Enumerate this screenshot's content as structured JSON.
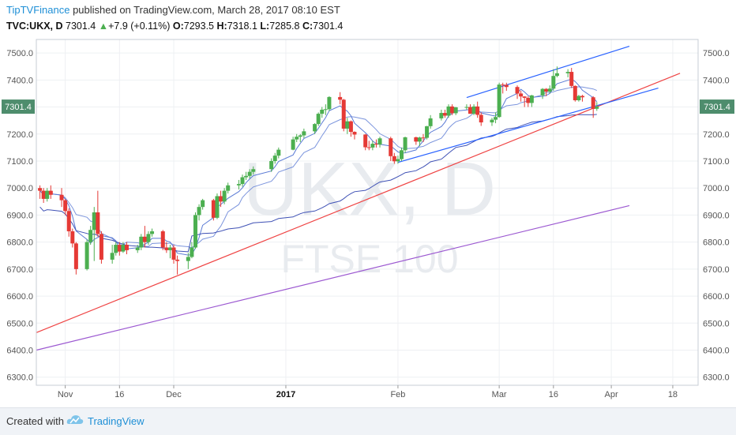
{
  "header": {
    "publisher": "TipTVFinance",
    "published_text": "published on TradingView.com, March 28, 2017 08:10 EST"
  },
  "symbol_line": {
    "symbol": "TVC:UKX, D",
    "last": "7301.4",
    "change": "+7.9 (+0.11%)",
    "open_label": "O:",
    "open": "7293.5",
    "high_label": "H:",
    "high": "7318.1",
    "low_label": "L:",
    "low": "7285.8",
    "close_label": "C:",
    "close": "7301.4"
  },
  "footer": {
    "created_with": "Created with",
    "brand": "TradingView"
  },
  "colors": {
    "up": "#4caf50",
    "down": "#e53935",
    "ma_fast": "#5b7bd5",
    "ma_slow": "#3f51b5",
    "ma_200": "#9c59d1",
    "trend_red": "#ef4444",
    "channel": "#2962ff",
    "tag": "#4e8d6d"
  },
  "chart_data": {
    "type": "candlestick",
    "watermark": {
      "symbol": "UKX, D",
      "name": "FTSE 100"
    },
    "y_ticks": [
      "7500.0",
      "7400.0",
      "7300.0",
      "7200.0",
      "7100.0",
      "7000.0",
      "6900.0",
      "6800.0",
      "6700.0",
      "6600.0",
      "6500.0",
      "6400.0",
      "6300.0"
    ],
    "ylim": [
      6270,
      7550
    ],
    "x_ticks": [
      {
        "label": "Nov",
        "bold": false
      },
      {
        "label": "16",
        "bold": false
      },
      {
        "label": "Dec",
        "bold": false
      },
      {
        "label": "2017",
        "bold": true
      },
      {
        "label": "Feb",
        "bold": false
      },
      {
        "label": "Mar",
        "bold": false
      },
      {
        "label": "16",
        "bold": false
      },
      {
        "label": "Apr",
        "bold": false
      },
      {
        "label": "18",
        "bold": false
      }
    ],
    "last_price_label": "7301.4",
    "last_price": 7301.4,
    "candles": [
      {
        "date": "2016-10-25",
        "o": 7000,
        "h": 7010,
        "l": 6960,
        "c": 6990
      },
      {
        "date": "2016-10-26",
        "o": 6990,
        "h": 7000,
        "l": 6945,
        "c": 6960
      },
      {
        "date": "2016-10-27",
        "o": 6960,
        "h": 7000,
        "l": 6950,
        "c": 6990
      },
      {
        "date": "2016-10-28",
        "o": 6990,
        "h": 7010,
        "l": 6960,
        "c": 6975
      },
      {
        "date": "2016-10-31",
        "o": 6975,
        "h": 7000,
        "l": 6930,
        "c": 6955
      },
      {
        "date": "2016-11-01",
        "o": 6955,
        "h": 6960,
        "l": 6900,
        "c": 6915
      },
      {
        "date": "2016-11-02",
        "o": 6915,
        "h": 6925,
        "l": 6820,
        "c": 6840
      },
      {
        "date": "2016-11-03",
        "o": 6840,
        "h": 6850,
        "l": 6780,
        "c": 6795
      },
      {
        "date": "2016-11-04",
        "o": 6795,
        "h": 6800,
        "l": 6680,
        "c": 6700
      },
      {
        "date": "2016-11-07",
        "o": 6700,
        "h": 6810,
        "l": 6695,
        "c": 6800
      },
      {
        "date": "2016-11-08",
        "o": 6800,
        "h": 6860,
        "l": 6790,
        "c": 6845
      },
      {
        "date": "2016-11-09",
        "o": 6845,
        "h": 6930,
        "l": 6730,
        "c": 6910
      },
      {
        "date": "2016-11-10",
        "o": 6910,
        "h": 6990,
        "l": 6820,
        "c": 6830
      },
      {
        "date": "2016-11-11",
        "o": 6830,
        "h": 6840,
        "l": 6720,
        "c": 6735
      },
      {
        "date": "2016-11-14",
        "o": 6735,
        "h": 6790,
        "l": 6720,
        "c": 6760
      },
      {
        "date": "2016-11-15",
        "o": 6760,
        "h": 6800,
        "l": 6750,
        "c": 6790
      },
      {
        "date": "2016-11-16",
        "o": 6790,
        "h": 6800,
        "l": 6750,
        "c": 6765
      },
      {
        "date": "2016-11-17",
        "o": 6765,
        "h": 6800,
        "l": 6760,
        "c": 6790
      },
      {
        "date": "2016-11-18",
        "o": 6790,
        "h": 6800,
        "l": 6755,
        "c": 6770
      },
      {
        "date": "2016-11-21",
        "o": 6770,
        "h": 6790,
        "l": 6760,
        "c": 6780
      },
      {
        "date": "2016-11-22",
        "o": 6780,
        "h": 6830,
        "l": 6770,
        "c": 6820
      },
      {
        "date": "2016-11-23",
        "o": 6820,
        "h": 6860,
        "l": 6780,
        "c": 6800
      },
      {
        "date": "2016-11-24",
        "o": 6800,
        "h": 6840,
        "l": 6790,
        "c": 6830
      },
      {
        "date": "2016-11-25",
        "o": 6830,
        "h": 6850,
        "l": 6820,
        "c": 6840
      },
      {
        "date": "2016-11-28",
        "o": 6840,
        "h": 6845,
        "l": 6770,
        "c": 6780
      },
      {
        "date": "2016-11-29",
        "o": 6780,
        "h": 6800,
        "l": 6760,
        "c": 6770
      },
      {
        "date": "2016-11-30",
        "o": 6770,
        "h": 6790,
        "l": 6740,
        "c": 6780
      },
      {
        "date": "2016-12-01",
        "o": 6780,
        "h": 6790,
        "l": 6720,
        "c": 6735
      },
      {
        "date": "2016-12-02",
        "o": 6735,
        "h": 6750,
        "l": 6680,
        "c": 6730
      },
      {
        "date": "2016-12-05",
        "o": 6730,
        "h": 6760,
        "l": 6700,
        "c": 6745
      },
      {
        "date": "2016-12-06",
        "o": 6745,
        "h": 6800,
        "l": 6740,
        "c": 6780
      },
      {
        "date": "2016-12-07",
        "o": 6780,
        "h": 6910,
        "l": 6775,
        "c": 6900
      },
      {
        "date": "2016-12-08",
        "o": 6900,
        "h": 6940,
        "l": 6880,
        "c": 6930
      },
      {
        "date": "2016-12-09",
        "o": 6930,
        "h": 6960,
        "l": 6920,
        "c": 6955
      },
      {
        "date": "2016-12-12",
        "o": 6955,
        "h": 6960,
        "l": 6880,
        "c": 6890
      },
      {
        "date": "2016-12-13",
        "o": 6890,
        "h": 6980,
        "l": 6885,
        "c": 6970
      },
      {
        "date": "2016-12-14",
        "o": 6970,
        "h": 6990,
        "l": 6930,
        "c": 6950
      },
      {
        "date": "2016-12-15",
        "o": 6950,
        "h": 7000,
        "l": 6940,
        "c": 6990
      },
      {
        "date": "2016-12-16",
        "o": 6990,
        "h": 7020,
        "l": 6980,
        "c": 7010
      },
      {
        "date": "2016-12-19",
        "o": 7010,
        "h": 7030,
        "l": 6995,
        "c": 7015
      },
      {
        "date": "2016-12-20",
        "o": 7015,
        "h": 7050,
        "l": 7005,
        "c": 7040
      },
      {
        "date": "2016-12-21",
        "o": 7040,
        "h": 7060,
        "l": 7030,
        "c": 7045
      },
      {
        "date": "2016-12-22",
        "o": 7045,
        "h": 7070,
        "l": 7035,
        "c": 7060
      },
      {
        "date": "2016-12-23",
        "o": 7060,
        "h": 7080,
        "l": 7050,
        "c": 7070
      },
      {
        "date": "2016-12-28",
        "o": 7070,
        "h": 7110,
        "l": 7060,
        "c": 7100
      },
      {
        "date": "2016-12-29",
        "o": 7100,
        "h": 7130,
        "l": 7090,
        "c": 7120
      },
      {
        "date": "2016-12-30",
        "o": 7120,
        "h": 7150,
        "l": 7110,
        "c": 7142
      },
      {
        "date": "2017-01-03",
        "o": 7142,
        "h": 7190,
        "l": 7140,
        "c": 7180
      },
      {
        "date": "2017-01-04",
        "o": 7180,
        "h": 7200,
        "l": 7170,
        "c": 7190
      },
      {
        "date": "2017-01-05",
        "o": 7190,
        "h": 7200,
        "l": 7170,
        "c": 7195
      },
      {
        "date": "2017-01-06",
        "o": 7195,
        "h": 7220,
        "l": 7185,
        "c": 7210
      },
      {
        "date": "2017-01-09",
        "o": 7210,
        "h": 7240,
        "l": 7200,
        "c": 7237
      },
      {
        "date": "2017-01-10",
        "o": 7237,
        "h": 7280,
        "l": 7230,
        "c": 7275
      },
      {
        "date": "2017-01-11",
        "o": 7275,
        "h": 7300,
        "l": 7260,
        "c": 7290
      },
      {
        "date": "2017-01-12",
        "o": 7290,
        "h": 7310,
        "l": 7270,
        "c": 7292
      },
      {
        "date": "2017-01-13",
        "o": 7292,
        "h": 7340,
        "l": 7285,
        "c": 7337
      },
      {
        "date": "2017-01-16",
        "o": 7337,
        "h": 7355,
        "l": 7310,
        "c": 7327
      },
      {
        "date": "2017-01-17",
        "o": 7327,
        "h": 7330,
        "l": 7210,
        "c": 7220
      },
      {
        "date": "2017-01-18",
        "o": 7220,
        "h": 7260,
        "l": 7200,
        "c": 7247
      },
      {
        "date": "2017-01-19",
        "o": 7247,
        "h": 7250,
        "l": 7190,
        "c": 7208
      },
      {
        "date": "2017-01-20",
        "o": 7208,
        "h": 7210,
        "l": 7180,
        "c": 7198
      },
      {
        "date": "2017-01-23",
        "o": 7198,
        "h": 7200,
        "l": 7140,
        "c": 7151
      },
      {
        "date": "2017-01-24",
        "o": 7151,
        "h": 7175,
        "l": 7140,
        "c": 7150
      },
      {
        "date": "2017-01-25",
        "o": 7150,
        "h": 7175,
        "l": 7140,
        "c": 7164
      },
      {
        "date": "2017-01-26",
        "o": 7164,
        "h": 7180,
        "l": 7150,
        "c": 7161
      },
      {
        "date": "2017-01-27",
        "o": 7161,
        "h": 7190,
        "l": 7150,
        "c": 7184
      },
      {
        "date": "2017-01-30",
        "o": 7184,
        "h": 7190,
        "l": 7100,
        "c": 7118
      },
      {
        "date": "2017-01-31",
        "o": 7118,
        "h": 7130,
        "l": 7090,
        "c": 7099
      },
      {
        "date": "2017-02-01",
        "o": 7099,
        "h": 7120,
        "l": 7090,
        "c": 7107
      },
      {
        "date": "2017-02-02",
        "o": 7107,
        "h": 7150,
        "l": 7100,
        "c": 7140
      },
      {
        "date": "2017-02-03",
        "o": 7140,
        "h": 7190,
        "l": 7130,
        "c": 7188
      },
      {
        "date": "2017-02-06",
        "o": 7188,
        "h": 7190,
        "l": 7160,
        "c": 7172
      },
      {
        "date": "2017-02-07",
        "o": 7172,
        "h": 7190,
        "l": 7155,
        "c": 7187
      },
      {
        "date": "2017-02-08",
        "o": 7187,
        "h": 7200,
        "l": 7170,
        "c": 7186
      },
      {
        "date": "2017-02-09",
        "o": 7186,
        "h": 7230,
        "l": 7180,
        "c": 7229
      },
      {
        "date": "2017-02-10",
        "o": 7229,
        "h": 7270,
        "l": 7220,
        "c": 7258
      },
      {
        "date": "2017-02-13",
        "o": 7258,
        "h": 7290,
        "l": 7250,
        "c": 7278
      },
      {
        "date": "2017-02-14",
        "o": 7278,
        "h": 7290,
        "l": 7260,
        "c": 7268
      },
      {
        "date": "2017-02-15",
        "o": 7268,
        "h": 7310,
        "l": 7260,
        "c": 7302
      },
      {
        "date": "2017-02-16",
        "o": 7302,
        "h": 7310,
        "l": 7270,
        "c": 7277
      },
      {
        "date": "2017-02-17",
        "o": 7277,
        "h": 7300,
        "l": 7270,
        "c": 7299
      },
      {
        "date": "2017-02-20",
        "o": 7299,
        "h": 7310,
        "l": 7290,
        "c": 7300
      },
      {
        "date": "2017-02-21",
        "o": 7300,
        "h": 7310,
        "l": 7275,
        "c": 7275
      },
      {
        "date": "2017-02-22",
        "o": 7275,
        "h": 7310,
        "l": 7270,
        "c": 7302
      },
      {
        "date": "2017-02-23",
        "o": 7302,
        "h": 7320,
        "l": 7260,
        "c": 7271
      },
      {
        "date": "2017-02-24",
        "o": 7271,
        "h": 7280,
        "l": 7230,
        "c": 7243
      },
      {
        "date": "2017-02-27",
        "o": 7243,
        "h": 7260,
        "l": 7230,
        "c": 7253
      },
      {
        "date": "2017-02-28",
        "o": 7253,
        "h": 7280,
        "l": 7240,
        "c": 7263
      },
      {
        "date": "2017-03-01",
        "o": 7263,
        "h": 7390,
        "l": 7260,
        "c": 7383
      },
      {
        "date": "2017-03-02",
        "o": 7383,
        "h": 7390,
        "l": 7350,
        "c": 7382
      },
      {
        "date": "2017-03-03",
        "o": 7382,
        "h": 7390,
        "l": 7360,
        "c": 7374
      },
      {
        "date": "2017-03-06",
        "o": 7374,
        "h": 7380,
        "l": 7330,
        "c": 7350
      },
      {
        "date": "2017-03-07",
        "o": 7350,
        "h": 7360,
        "l": 7320,
        "c": 7339
      },
      {
        "date": "2017-03-08",
        "o": 7339,
        "h": 7340,
        "l": 7300,
        "c": 7334
      },
      {
        "date": "2017-03-09",
        "o": 7334,
        "h": 7340,
        "l": 7300,
        "c": 7315
      },
      {
        "date": "2017-03-10",
        "o": 7315,
        "h": 7345,
        "l": 7300,
        "c": 7343
      },
      {
        "date": "2017-03-13",
        "o": 7343,
        "h": 7370,
        "l": 7330,
        "c": 7367
      },
      {
        "date": "2017-03-14",
        "o": 7367,
        "h": 7370,
        "l": 7340,
        "c": 7357
      },
      {
        "date": "2017-03-15",
        "o": 7357,
        "h": 7380,
        "l": 7350,
        "c": 7368
      },
      {
        "date": "2017-03-16",
        "o": 7368,
        "h": 7440,
        "l": 7360,
        "c": 7415
      },
      {
        "date": "2017-03-17",
        "o": 7415,
        "h": 7450,
        "l": 7410,
        "c": 7425
      },
      {
        "date": "2017-03-20",
        "o": 7425,
        "h": 7440,
        "l": 7410,
        "c": 7430
      },
      {
        "date": "2017-03-21",
        "o": 7430,
        "h": 7445,
        "l": 7370,
        "c": 7378
      },
      {
        "date": "2017-03-22",
        "o": 7378,
        "h": 7380,
        "l": 7320,
        "c": 7325
      },
      {
        "date": "2017-03-23",
        "o": 7325,
        "h": 7345,
        "l": 7320,
        "c": 7341
      },
      {
        "date": "2017-03-24",
        "o": 7341,
        "h": 7345,
        "l": 7320,
        "c": 7336
      },
      {
        "date": "2017-03-27",
        "o": 7336,
        "h": 7340,
        "l": 7260,
        "c": 7293
      },
      {
        "date": "2017-03-28",
        "o": 7293.5,
        "h": 7318.1,
        "l": 7285.8,
        "c": 7301.4
      }
    ],
    "ma_200": [
      {
        "date": "2016-10-24",
        "v": 6400
      },
      {
        "date": "2017-04-06",
        "v": 6935
      }
    ],
    "trendline_red": [
      {
        "date": "2016-10-24",
        "v": 6465
      },
      {
        "date": "2017-04-20",
        "v": 7425
      }
    ],
    "channel_upper": [
      {
        "date": "2017-02-20",
        "v": 7335
      },
      {
        "date": "2017-04-06",
        "v": 7525
      }
    ],
    "channel_lower": [
      {
        "date": "2017-02-01",
        "v": 7095
      },
      {
        "date": "2017-04-14",
        "v": 7370
      }
    ]
  }
}
